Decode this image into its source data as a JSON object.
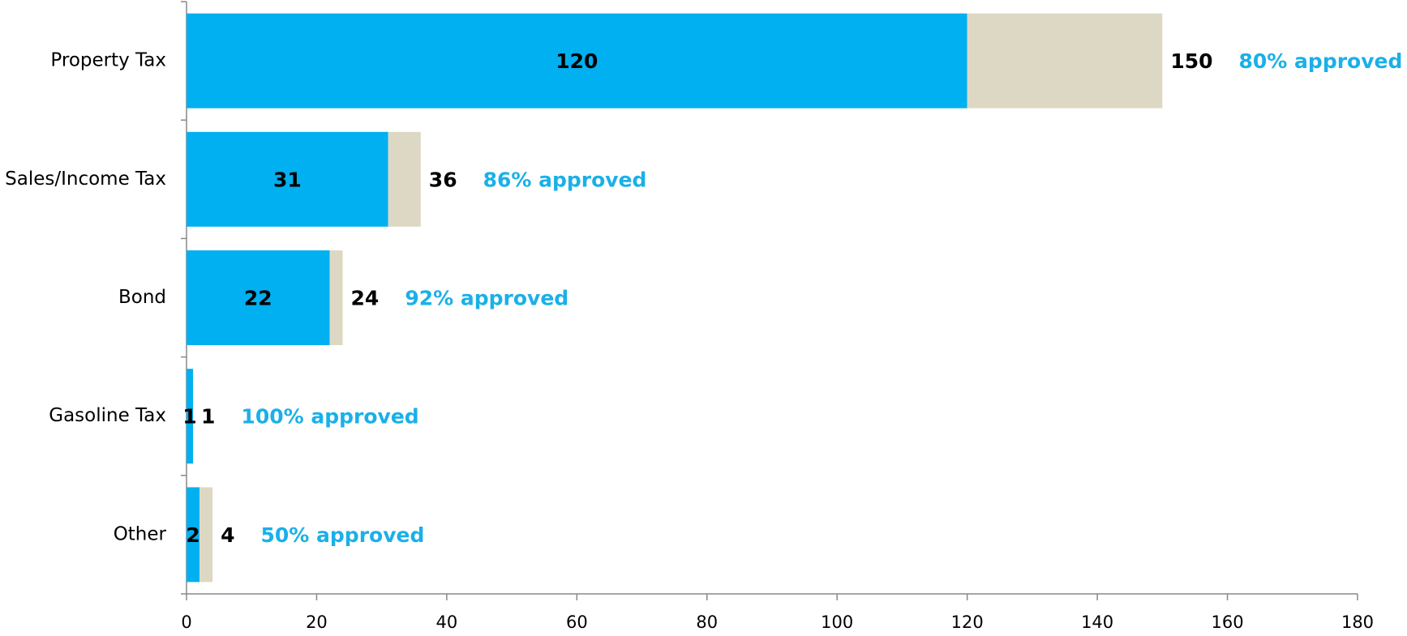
{
  "chart_data": {
    "type": "stacked-bar-horizontal",
    "categories": [
      "Property Tax",
      "Sales/Income Tax",
      "Bond",
      "Gasoline Tax",
      "Other"
    ],
    "series": [
      {
        "color": "#00b0f0",
        "values": [
          120,
          31,
          22,
          1,
          2
        ]
      },
      {
        "color": "#ddd8c4",
        "values": [
          30,
          5,
          2,
          0,
          2
        ]
      }
    ],
    "totals": [
      150,
      36,
      24,
      1,
      4
    ],
    "annotations": [
      "80% approved",
      "86% approved",
      "92% approved",
      "100% approved",
      "50% approved"
    ],
    "annotation_color": "#1ab0e8",
    "xlim": [
      0,
      180
    ],
    "xticks": [
      0,
      20,
      40,
      60,
      80,
      100,
      120,
      140,
      160,
      180
    ],
    "grid": false
  }
}
